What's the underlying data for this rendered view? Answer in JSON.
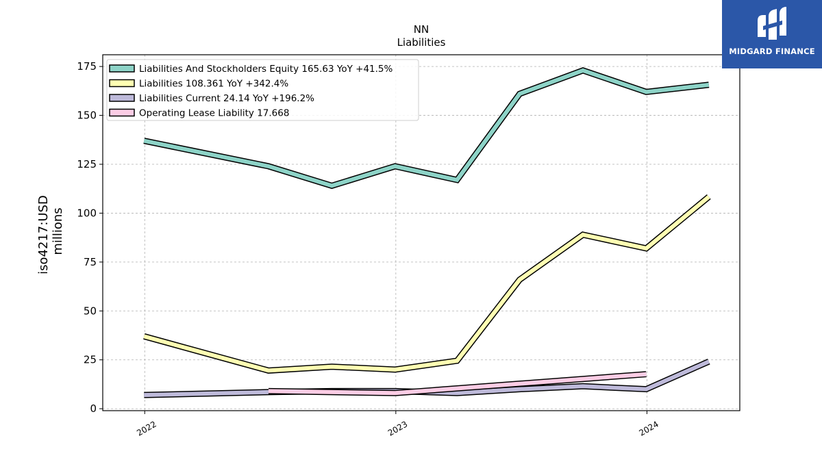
{
  "header": {
    "title": "NN",
    "subtitle": "Liabilities"
  },
  "brand": {
    "name": "MIDGARD FINANCE",
    "color": "#2b57a8"
  },
  "chart_data": {
    "type": "line",
    "title": "NN",
    "subtitle": "Liabilities",
    "ylabel": "iso4217:USD",
    "ylabel2": "millions",
    "xlabel": "",
    "ylim": [
      -1,
      181
    ],
    "xlim": [
      "2021-11-01",
      "2024-05-15"
    ],
    "yticks": [
      0,
      25,
      50,
      75,
      100,
      125,
      150,
      175
    ],
    "xticks": [
      {
        "label": "2022",
        "date": "2022-01-01"
      },
      {
        "label": "2023",
        "date": "2023-01-01"
      },
      {
        "label": "2024",
        "date": "2024-01-01"
      }
    ],
    "grid": true,
    "legend_position": "top-left",
    "series": [
      {
        "name": "Liabilities And Stockholders Equity",
        "legend": "Liabilities And Stockholders Equity  165.63 YoY +41.5%",
        "color": "#8dd3c7",
        "points": [
          {
            "date": "2021-12-31",
            "value": 137
          },
          {
            "date": "2022-06-30",
            "value": 124
          },
          {
            "date": "2022-09-30",
            "value": 114
          },
          {
            "date": "2022-12-31",
            "value": 124
          },
          {
            "date": "2023-03-31",
            "value": 117
          },
          {
            "date": "2023-06-30",
            "value": 161
          },
          {
            "date": "2023-09-30",
            "value": 173
          },
          {
            "date": "2023-12-31",
            "value": 162
          },
          {
            "date": "2024-03-31",
            "value": 165.63
          }
        ]
      },
      {
        "name": "Liabilities",
        "legend": "Liabilities  108.361 YoY +342.4%",
        "color": "#ffffb3",
        "points": [
          {
            "date": "2021-12-31",
            "value": 37
          },
          {
            "date": "2022-06-30",
            "value": 19.5
          },
          {
            "date": "2022-09-30",
            "value": 21.5
          },
          {
            "date": "2022-12-31",
            "value": 20
          },
          {
            "date": "2023-03-31",
            "value": 24.5
          },
          {
            "date": "2023-06-30",
            "value": 66
          },
          {
            "date": "2023-09-30",
            "value": 89
          },
          {
            "date": "2023-12-31",
            "value": 82
          },
          {
            "date": "2024-03-31",
            "value": 108.361
          }
        ]
      },
      {
        "name": "Liabilities Current",
        "legend": "Liabilities Current  24.14 YoY +196.2%",
        "color": "#bebada",
        "points": [
          {
            "date": "2021-12-31",
            "value": 7
          },
          {
            "date": "2022-06-30",
            "value": 8.5
          },
          {
            "date": "2022-09-30",
            "value": 9
          },
          {
            "date": "2022-12-31",
            "value": 9
          },
          {
            "date": "2023-03-31",
            "value": 8
          },
          {
            "date": "2023-06-30",
            "value": 10
          },
          {
            "date": "2023-09-30",
            "value": 11.5
          },
          {
            "date": "2023-12-31",
            "value": 10
          },
          {
            "date": "2024-03-31",
            "value": 24.14
          }
        ]
      },
      {
        "name": "Operating Lease Liability",
        "legend": "Operating Lease Liability  17.668",
        "color": "#fccde5",
        "points": [
          {
            "date": "2022-06-30",
            "value": 9
          },
          {
            "date": "2022-12-31",
            "value": 8
          },
          {
            "date": "2023-12-31",
            "value": 17.668
          }
        ]
      }
    ]
  }
}
